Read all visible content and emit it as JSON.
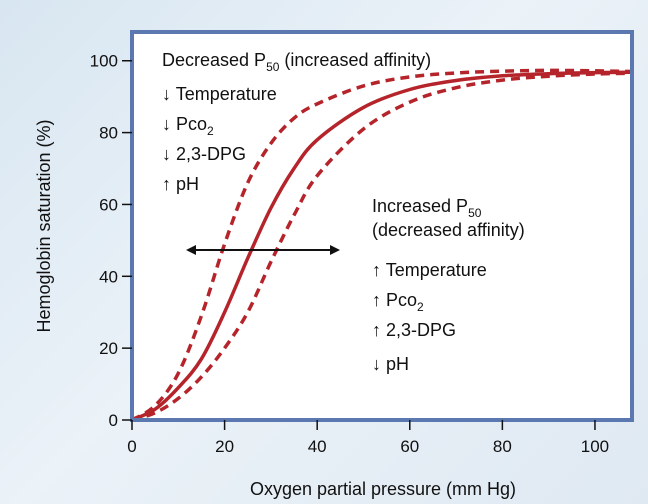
{
  "chart_data": {
    "type": "line",
    "xlabel": "Oxygen partial pressure (mm Hg)",
    "ylabel": "Hemoglobin saturation (%)",
    "xlim": [
      0,
      108
    ],
    "ylim": [
      0,
      108
    ],
    "x_ticks": [
      "0",
      "20",
      "40",
      "60",
      "80",
      "100"
    ],
    "y_ticks": [
      "0",
      "20",
      "40",
      "60",
      "80",
      "100"
    ],
    "grid": false,
    "series": [
      {
        "style": "dashed",
        "x": [
          0,
          5,
          10,
          15,
          20,
          25,
          30,
          35,
          40,
          50,
          60,
          70,
          80,
          90,
          100,
          108
        ],
        "values": [
          0,
          4,
          13,
          29,
          49,
          66,
          77,
          84,
          88,
          93,
          95.5,
          96.6,
          97.1,
          97.3,
          97.2,
          97
        ]
      },
      {
        "style": "solid",
        "x": [
          0,
          5,
          10,
          15,
          20,
          25,
          30,
          35,
          40,
          50,
          60,
          70,
          80,
          90,
          100,
          108
        ],
        "values": [
          0,
          3,
          9,
          17,
          30,
          45,
          59,
          70,
          78,
          87,
          92,
          94.5,
          95.8,
          96.4,
          96.7,
          96.8
        ]
      },
      {
        "style": "dashed",
        "x": [
          0,
          5,
          10,
          15,
          20,
          25,
          30,
          35,
          40,
          50,
          60,
          70,
          80,
          90,
          100,
          108
        ],
        "values": [
          0,
          2,
          6,
          12,
          20,
          30,
          44,
          57,
          68,
          81,
          88.5,
          92.5,
          94.6,
          95.7,
          96.3,
          96.5
        ]
      }
    ],
    "line_color": "#b5242a",
    "frame_color": "#5b79b0",
    "arrow_color": "#111111",
    "annotations": {
      "left_heading": {
        "main": "Decreased P",
        "sub": "50",
        "rest": " (increased affinity)"
      },
      "left_items": [
        {
          "arrow": "↓",
          "text": "Temperature",
          "sub": ""
        },
        {
          "arrow": "↓",
          "text": "Pco",
          "sub": "2"
        },
        {
          "arrow": "↓",
          "text": "2,3-DPG",
          "sub": ""
        },
        {
          "arrow": "↑",
          "text": "pH",
          "sub": ""
        }
      ],
      "right_heading_line1": {
        "main": "Increased P",
        "sub": "50"
      },
      "right_heading_line2": "(decreased affinity)",
      "right_items": [
        {
          "arrow": "↑",
          "text": "Temperature",
          "sub": ""
        },
        {
          "arrow": "↑",
          "text": "Pco",
          "sub": "2"
        },
        {
          "arrow": "↑",
          "text": "2,3-DPG",
          "sub": ""
        },
        {
          "arrow": "↓",
          "text": "pH",
          "sub": ""
        }
      ]
    }
  }
}
